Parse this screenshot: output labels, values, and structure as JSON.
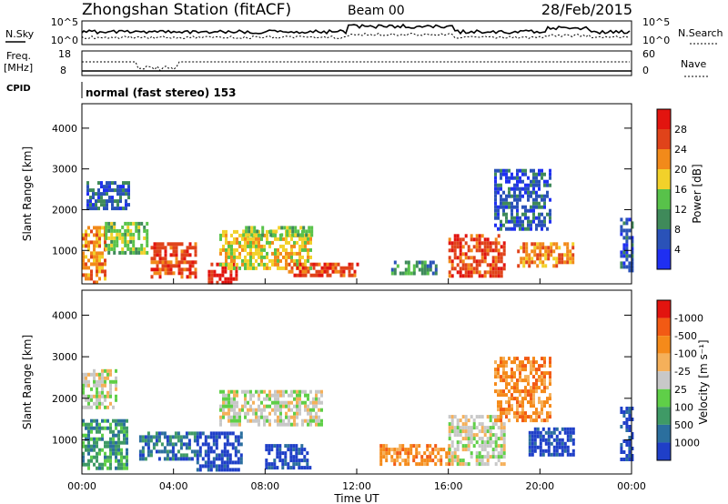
{
  "header": {
    "station": "Zhongshan Station (fitACF)",
    "beam": "Beam 00",
    "date": "28/Feb/2015"
  },
  "noise_panel": {
    "left_label": "N.Sky",
    "left_top_tick": "10^5",
    "left_bottom_tick": "10^0",
    "right_top_tick": "10^5",
    "right_bottom_tick": "10^0",
    "right_label": "N.Search"
  },
  "freq_panel": {
    "left_label_1": "Freq.",
    "left_label_2": "[MHz]",
    "left_top_tick": "18",
    "left_bottom_tick": "8",
    "right_top_tick": "60",
    "right_bottom_tick": "0",
    "right_label": "Nave"
  },
  "cpid_panel": {
    "label": "CPID",
    "mode_text": "normal (fast stereo) 153"
  },
  "chart_data": [
    {
      "type": "heatmap",
      "name": "Power",
      "ylabel": "Slant Range [km]",
      "ylim": [
        180,
        4600
      ],
      "y_ticks": [
        "1000",
        "2000",
        "3000",
        "4000"
      ],
      "x_ticks": [
        "00:00",
        "04:00",
        "08:00",
        "12:00",
        "16:00",
        "20:00",
        "00:00"
      ],
      "colorbar_label": "Power [dB]",
      "colorbar_ticks": [
        "4",
        "8",
        "12",
        "16",
        "20",
        "24",
        "28"
      ],
      "colorbar_colors": [
        "#1f2ff2",
        "#2a52b8",
        "#3f8a5a",
        "#58c24a",
        "#f2d12a",
        "#f28a1a",
        "#e0431a",
        "#e2140f"
      ],
      "regions": [
        {
          "x0": 0.0,
          "x1": 1.0,
          "y0": 250,
          "y1": 1600,
          "color_index": 5
        },
        {
          "x0": 1.0,
          "x1": 2.8,
          "y0": 900,
          "y1": 1700,
          "color_index": 3
        },
        {
          "x0": 0.2,
          "x1": 2.0,
          "y0": 2000,
          "y1": 2700,
          "color_index": 1
        },
        {
          "x0": 3.0,
          "x1": 5.0,
          "y0": 350,
          "y1": 1200,
          "color_index": 6
        },
        {
          "x0": 5.5,
          "x1": 6.8,
          "y0": 250,
          "y1": 700,
          "color_index": 7
        },
        {
          "x0": 6.0,
          "x1": 10.0,
          "y0": 600,
          "y1": 1500,
          "color_index": 4
        },
        {
          "x0": 7.0,
          "x1": 10.0,
          "y0": 1350,
          "y1": 1600,
          "color_index": 3
        },
        {
          "x0": 9.0,
          "x1": 12.0,
          "y0": 350,
          "y1": 700,
          "color_index": 6
        },
        {
          "x0": 13.5,
          "x1": 15.5,
          "y0": 450,
          "y1": 750,
          "color_index": 2
        },
        {
          "x0": 16.0,
          "x1": 18.5,
          "y0": 400,
          "y1": 1400,
          "color_index": 6
        },
        {
          "x0": 18.0,
          "x1": 20.5,
          "y0": 1500,
          "y1": 3000,
          "color_index": 1
        },
        {
          "x0": 19.0,
          "x1": 21.5,
          "y0": 600,
          "y1": 1200,
          "color_index": 5
        },
        {
          "x0": 23.5,
          "x1": 24.0,
          "y0": 500,
          "y1": 1800,
          "color_index": 1
        }
      ]
    },
    {
      "type": "heatmap",
      "name": "Velocity",
      "ylabel": "Slant Range [km]",
      "ylim": [
        180,
        4600
      ],
      "y_ticks": [
        "1000",
        "2000",
        "3000",
        "4000"
      ],
      "x_ticks": [
        "00:00",
        "04:00",
        "08:00",
        "12:00",
        "16:00",
        "20:00",
        "00:00"
      ],
      "xlabel": "Time UT",
      "colorbar_label": "Velocity [m s⁻¹]",
      "colorbar_ticks": [
        "1000",
        "500",
        "100",
        "25",
        "-25",
        "-100",
        "-500",
        "-1000"
      ],
      "colorbar_colors": [
        "#1f3fc8",
        "#2b6f9e",
        "#3f9a66",
        "#5fcf48",
        "#c8c8c8",
        "#f5b05a",
        "#f58a1a",
        "#f25a14",
        "#e2140f"
      ],
      "regions": [
        {
          "x0": 0.0,
          "x1": 1.5,
          "y0": 1800,
          "y1": 2700,
          "color_index": 4
        },
        {
          "x0": 0.0,
          "x1": 2.0,
          "y0": 300,
          "y1": 1500,
          "color_index": 2
        },
        {
          "x0": 2.5,
          "x1": 5.0,
          "y0": 500,
          "y1": 1200,
          "color_index": 1
        },
        {
          "x0": 5.0,
          "x1": 7.0,
          "y0": 300,
          "y1": 1200,
          "color_index": 0
        },
        {
          "x0": 6.0,
          "x1": 10.5,
          "y0": 1400,
          "y1": 2200,
          "color_index": 4
        },
        {
          "x0": 8.0,
          "x1": 10.0,
          "y0": 300,
          "y1": 900,
          "color_index": 0
        },
        {
          "x0": 13.0,
          "x1": 16.0,
          "y0": 400,
          "y1": 900,
          "color_index": 6
        },
        {
          "x0": 16.0,
          "x1": 18.5,
          "y0": 400,
          "y1": 1600,
          "color_index": 4
        },
        {
          "x0": 18.0,
          "x1": 20.5,
          "y0": 1500,
          "y1": 3000,
          "color_index": 6
        },
        {
          "x0": 19.5,
          "x1": 21.5,
          "y0": 600,
          "y1": 1300,
          "color_index": 0
        },
        {
          "x0": 23.5,
          "x1": 24.0,
          "y0": 500,
          "y1": 1800,
          "color_index": 0
        }
      ]
    }
  ]
}
